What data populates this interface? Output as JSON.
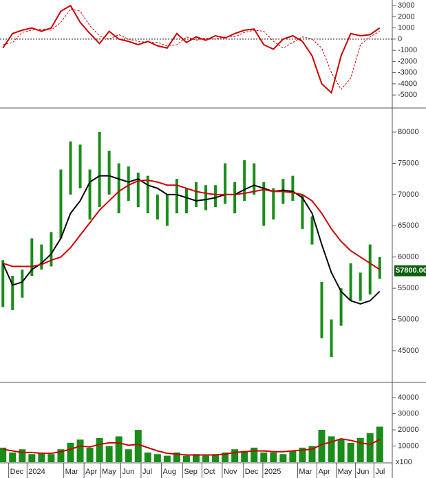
{
  "chart_data": [
    {
      "type": "line",
      "x": [
        0,
        1,
        2,
        3,
        4,
        5,
        6,
        7,
        8,
        9,
        10,
        11,
        12,
        13,
        14,
        15,
        16,
        17,
        18,
        19,
        20,
        21,
        22,
        23,
        24,
        25,
        26,
        27,
        28,
        29,
        30,
        31,
        32,
        33,
        34,
        35,
        36,
        37,
        38,
        39
      ],
      "series": [
        {
          "color": "#cc0000",
          "dashed": false,
          "values": [
            -800,
            500,
            800,
            1000,
            700,
            1000,
            2500,
            3000,
            1500,
            500,
            -400,
            700,
            0,
            -200,
            -500,
            -200,
            -600,
            -800,
            500,
            -300,
            200,
            -100,
            300,
            100,
            500,
            800,
            900,
            -500,
            -900,
            0,
            300,
            -200,
            -1500,
            -4000,
            -4800,
            -1500,
            500,
            300,
            400,
            1000
          ]
        },
        {
          "color": "#cc0000",
          "dashed": true,
          "values": [
            -500,
            -300,
            600,
            800,
            900,
            800,
            1500,
            2700,
            2500,
            1200,
            300,
            0,
            400,
            0,
            -200,
            -300,
            -300,
            -600,
            -500,
            200,
            -100,
            100,
            0,
            200,
            200,
            600,
            800,
            700,
            -200,
            -800,
            -300,
            200,
            0,
            -800,
            -3000,
            -4500,
            -3500,
            -500,
            200,
            700
          ]
        }
      ],
      "zero_line": 0,
      "ylim": [
        -6100,
        3500
      ],
      "yticks": [
        3000,
        2000,
        1000,
        0,
        -1000,
        -2000,
        -3000,
        -4000,
        -5000
      ]
    },
    {
      "type": "candlestick",
      "x": [
        0,
        1,
        2,
        3,
        4,
        5,
        6,
        7,
        8,
        9,
        10,
        11,
        12,
        13,
        14,
        15,
        16,
        17,
        18,
        19,
        20,
        21,
        22,
        23,
        24,
        25,
        26,
        27,
        28,
        29,
        30,
        31,
        32,
        33,
        34,
        35,
        36,
        37,
        38,
        39
      ],
      "color": "#1a8c1a",
      "high": [
        59500,
        57000,
        58000,
        63000,
        62000,
        64000,
        74000,
        78500,
        78000,
        74000,
        80000,
        77000,
        75000,
        74500,
        73500,
        73000,
        70000,
        70000,
        72500,
        71000,
        72000,
        71500,
        71500,
        75000,
        72000,
        75500,
        75000,
        72000,
        71000,
        72500,
        73000,
        70000,
        66500,
        56000,
        50000,
        55000,
        59000,
        57500,
        62000,
        60000
      ],
      "low": [
        52000,
        51500,
        53500,
        57000,
        58000,
        58500,
        63000,
        70000,
        71000,
        66000,
        68000,
        70000,
        67000,
        69000,
        68000,
        67000,
        66000,
        65000,
        67000,
        67000,
        68000,
        67500,
        68000,
        68500,
        67000,
        69000,
        70000,
        65000,
        66000,
        68500,
        69000,
        64500,
        62000,
        47000,
        44000,
        49000,
        53000,
        53000,
        54000,
        56500
      ],
      "series": [
        {
          "color": "#000000",
          "values": [
            59000,
            55500,
            56000,
            58000,
            59000,
            60500,
            63000,
            67000,
            69000,
            72000,
            73000,
            73000,
            72500,
            72000,
            72500,
            71500,
            71000,
            70000,
            70000,
            69500,
            69000,
            69200,
            69500,
            70000,
            70000,
            70800,
            71500,
            71000,
            70500,
            70700,
            70500,
            69500,
            67000,
            62000,
            57500,
            54500,
            53000,
            52500,
            53000,
            54500
          ]
        },
        {
          "color": "#cc0000",
          "values": [
            59000,
            58500,
            58500,
            58500,
            58800,
            59500,
            60000,
            61500,
            63500,
            65500,
            67500,
            69000,
            70500,
            71500,
            72200,
            72300,
            72000,
            71500,
            71500,
            71000,
            70500,
            70200,
            70000,
            70000,
            70000,
            70200,
            70500,
            70800,
            70500,
            70500,
            70300,
            70000,
            69000,
            67000,
            64500,
            62500,
            61000,
            60000,
            59000,
            58000
          ]
        }
      ],
      "last_value": 57800,
      "last_label": "57800.00",
      "ylim": [
        40150,
        83750
      ],
      "yticks": [
        80000,
        75000,
        70000,
        65000,
        60000,
        55000,
        50000,
        45000
      ]
    },
    {
      "type": "bar",
      "x": [
        0,
        1,
        2,
        3,
        4,
        5,
        6,
        7,
        8,
        9,
        10,
        11,
        12,
        13,
        14,
        15,
        16,
        17,
        18,
        19,
        20,
        21,
        22,
        23,
        24,
        25,
        26,
        27,
        28,
        29,
        30,
        31,
        32,
        33,
        34,
        35,
        36,
        37,
        38,
        39
      ],
      "color": "#1a8c1a",
      "values": [
        9000,
        6000,
        8000,
        5000,
        6000,
        5000,
        8000,
        12000,
        14000,
        9000,
        15000,
        10000,
        16000,
        8000,
        20000,
        6000,
        5000,
        4000,
        6000,
        4000,
        5000,
        4000,
        5000,
        6000,
        8000,
        7000,
        9000,
        6000,
        6000,
        5000,
        7000,
        9000,
        10000,
        20000,
        16000,
        14000,
        12000,
        15000,
        18000,
        22000
      ],
      "series": [
        {
          "color": "#cc0000",
          "values": [
            8000,
            7000,
            6000,
            6000,
            5500,
            5500,
            6500,
            8000,
            10000,
            9500,
            11000,
            12000,
            12000,
            10500,
            11000,
            9000,
            7000,
            5500,
            5000,
            4500,
            4500,
            4500,
            4500,
            5000,
            6000,
            6500,
            7000,
            7000,
            6500,
            6500,
            7000,
            7500,
            8000,
            11000,
            12500,
            14500,
            13500,
            12000,
            11000,
            14000
          ]
        }
      ],
      "unit": "x100",
      "ylim": [
        0,
        49000
      ],
      "yticks": [
        40000,
        30000,
        20000,
        10000
      ],
      "xlim": [
        -0.3,
        40.3
      ],
      "xticks": [
        {
          "value": 0.6,
          "label": "Dec"
        },
        {
          "value": 2.5,
          "label": "2024"
        },
        {
          "value": 6.3,
          "label": "Mar"
        },
        {
          "value": 8.4,
          "label": "Apr"
        },
        {
          "value": 10.1,
          "label": "May"
        },
        {
          "value": 12.2,
          "label": "Jun"
        },
        {
          "value": 14.3,
          "label": "Jul"
        },
        {
          "value": 16.4,
          "label": "Aug"
        },
        {
          "value": 18.6,
          "label": "Sep"
        },
        {
          "value": 20.6,
          "label": "Oct"
        },
        {
          "value": 22.7,
          "label": "Nov"
        },
        {
          "value": 24.9,
          "label": "Dec"
        },
        {
          "value": 26.9,
          "label": "2025"
        },
        {
          "value": 30.5,
          "label": "Mar"
        },
        {
          "value": 32.5,
          "label": "Apr"
        },
        {
          "value": 34.5,
          "label": "May"
        },
        {
          "value": 36.5,
          "label": "Jun"
        },
        {
          "value": 38.4,
          "label": "Jul"
        }
      ]
    }
  ]
}
